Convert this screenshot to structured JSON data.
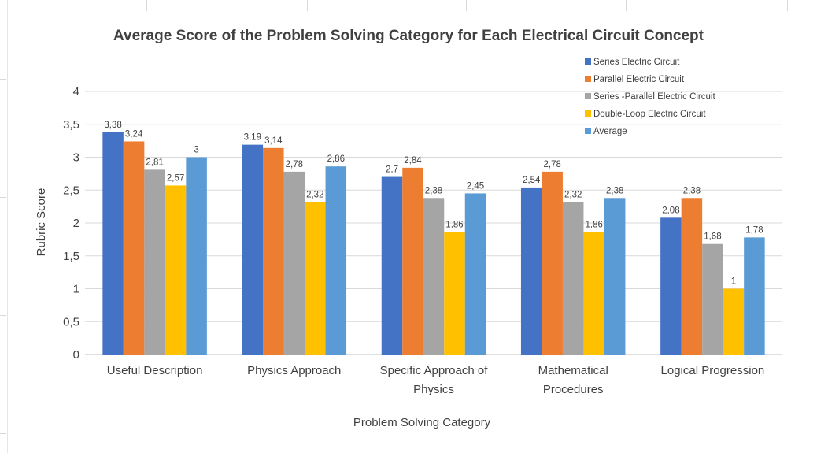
{
  "chart_data": {
    "type": "bar",
    "title": "Average Score of the Problem Solving Category for Each Electrical Circuit Concept",
    "xlabel": "Problem Solving Category",
    "ylabel": "Rubric Score",
    "ylim": [
      0,
      4
    ],
    "yticks": [
      "0",
      "0,5",
      "1",
      "1,5",
      "2",
      "2,5",
      "3",
      "3,5",
      "4"
    ],
    "grid": true,
    "legend_position": "top-right",
    "categories": [
      [
        "Useful Description"
      ],
      [
        "Physics Approach"
      ],
      [
        "Specific Approach of",
        "Physics"
      ],
      [
        "Mathematical",
        "Procedures"
      ],
      [
        "Logical Progression"
      ]
    ],
    "series": [
      {
        "name": "Series Electric Circuit",
        "color": "#4472C4",
        "values": [
          3.38,
          3.19,
          2.7,
          2.54,
          2.08
        ],
        "labels": [
          "3,38",
          "3,19",
          "2,7",
          "2,54",
          "2,08"
        ]
      },
      {
        "name": "Parallel Electric Circuit",
        "color": "#ED7D31",
        "values": [
          3.24,
          3.14,
          2.84,
          2.78,
          2.38
        ],
        "labels": [
          "3,24",
          "3,14",
          "2,84",
          "2,78",
          "2,38"
        ]
      },
      {
        "name": "Series -Parallel Electric Circuit",
        "color": "#A5A5A5",
        "values": [
          2.81,
          2.78,
          2.38,
          2.32,
          1.68
        ],
        "labels": [
          "2,81",
          "2,78",
          "2,38",
          "2,32",
          "1,68"
        ]
      },
      {
        "name": "Double-Loop Electric Circuit",
        "color": "#FFC000",
        "values": [
          2.57,
          2.32,
          1.86,
          1.86,
          1
        ],
        "labels": [
          "2,57",
          "2,32",
          "1,86",
          "1,86",
          "1"
        ]
      },
      {
        "name": "Average",
        "color": "#5B9BD5",
        "values": [
          3,
          2.86,
          2.45,
          2.38,
          1.78
        ],
        "labels": [
          "3",
          "2,86",
          "2,45",
          "2,38",
          "1,78"
        ]
      }
    ]
  }
}
